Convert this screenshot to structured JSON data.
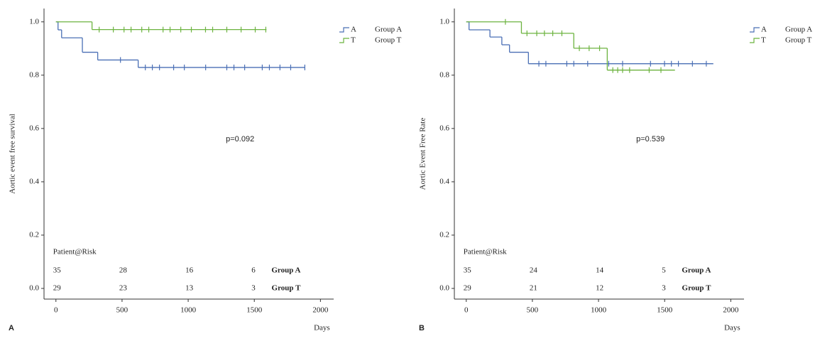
{
  "chart_data": [
    {
      "type": "line",
      "step": true,
      "panel_label": "A",
      "y_label": "Aortic event free survival",
      "x_label": "Days",
      "xlim": [
        -90,
        2100
      ],
      "ylim": [
        -0.04,
        1.05
      ],
      "xticks": [
        0,
        500,
        1000,
        1500,
        2000
      ],
      "yticks": [
        {
          "value": 0,
          "label": "0.0"
        },
        0.2,
        0.4,
        0.6,
        0.8,
        {
          "value": 1,
          "label": "1.0"
        }
      ],
      "annotation": "p=0.092",
      "series": [
        {
          "name": "Group A",
          "code": "A",
          "color": "#4a6fb5",
          "x": [
            0,
            16,
            43,
            200,
            316,
            622,
            1882
          ],
          "values": [
            1,
            0.97,
            0.94,
            0.886,
            0.857,
            0.829,
            0.829
          ],
          "censored": [
            488,
            676,
            729,
            783,
            890,
            971,
            1132,
            1292,
            1346,
            1427,
            1560,
            1614,
            1694,
            1775,
            1882
          ]
        },
        {
          "name": "Group T",
          "code": "T",
          "color": "#6cb33f",
          "x": [
            0,
            273,
            1592
          ],
          "values": [
            1,
            0.971,
            0.971
          ],
          "censored": [
            327,
            434,
            515,
            568,
            649,
            702,
            810,
            863,
            944,
            1024,
            1131,
            1185,
            1292,
            1400,
            1507,
            1587
          ]
        }
      ],
      "risk_table": {
        "title": "Patient@Risk",
        "at": [
          0,
          500,
          1000,
          1500
        ],
        "rows": [
          {
            "label": "Group A",
            "values": [
              35,
              28,
              16,
              6
            ]
          },
          {
            "label": "Group T",
            "values": [
              29,
              23,
              13,
              3
            ]
          }
        ]
      }
    },
    {
      "type": "line",
      "step": true,
      "panel_label": "B",
      "y_label": "Aortic Event Free Rate",
      "x_label": "Days",
      "xlim": [
        -90,
        2100
      ],
      "ylim": [
        -0.04,
        1.05
      ],
      "xticks": [
        0,
        500,
        1000,
        1500,
        2000
      ],
      "yticks": [
        {
          "value": 0,
          "label": "0.0"
        },
        0.2,
        0.4,
        0.6,
        0.8,
        {
          "value": 1,
          "label": "1.0"
        }
      ],
      "annotation": "p=0.539",
      "series": [
        {
          "name": "Group A",
          "code": "A",
          "color": "#4a6fb5",
          "x": [
            0,
            21,
            179,
            269,
            327,
            470,
            1868
          ],
          "values": [
            1,
            0.97,
            0.943,
            0.914,
            0.886,
            0.843,
            0.843
          ],
          "censored": [
            549,
            602,
            760,
            813,
            918,
            1077,
            1182,
            1393,
            1499,
            1551,
            1604,
            1710,
            1815
          ]
        },
        {
          "name": "Group T",
          "code": "T",
          "color": "#6cb33f",
          "x": [
            0,
            417,
            813,
            1066,
            1578
          ],
          "values": [
            1,
            0.957,
            0.901,
            0.819,
            0.819
          ],
          "censored": [
            296,
            459,
            533,
            591,
            654,
            723,
            855,
            929,
            1008,
            1108,
            1145,
            1182,
            1235,
            1383,
            1472
          ]
        }
      ],
      "risk_table": {
        "title": "Patient@Risk",
        "at": [
          0,
          500,
          1000,
          1500
        ],
        "rows": [
          {
            "label": "Group A",
            "values": [
              35,
              24,
              14,
              5
            ]
          },
          {
            "label": "Group T",
            "values": [
              29,
              21,
              12,
              3
            ]
          }
        ]
      }
    }
  ]
}
